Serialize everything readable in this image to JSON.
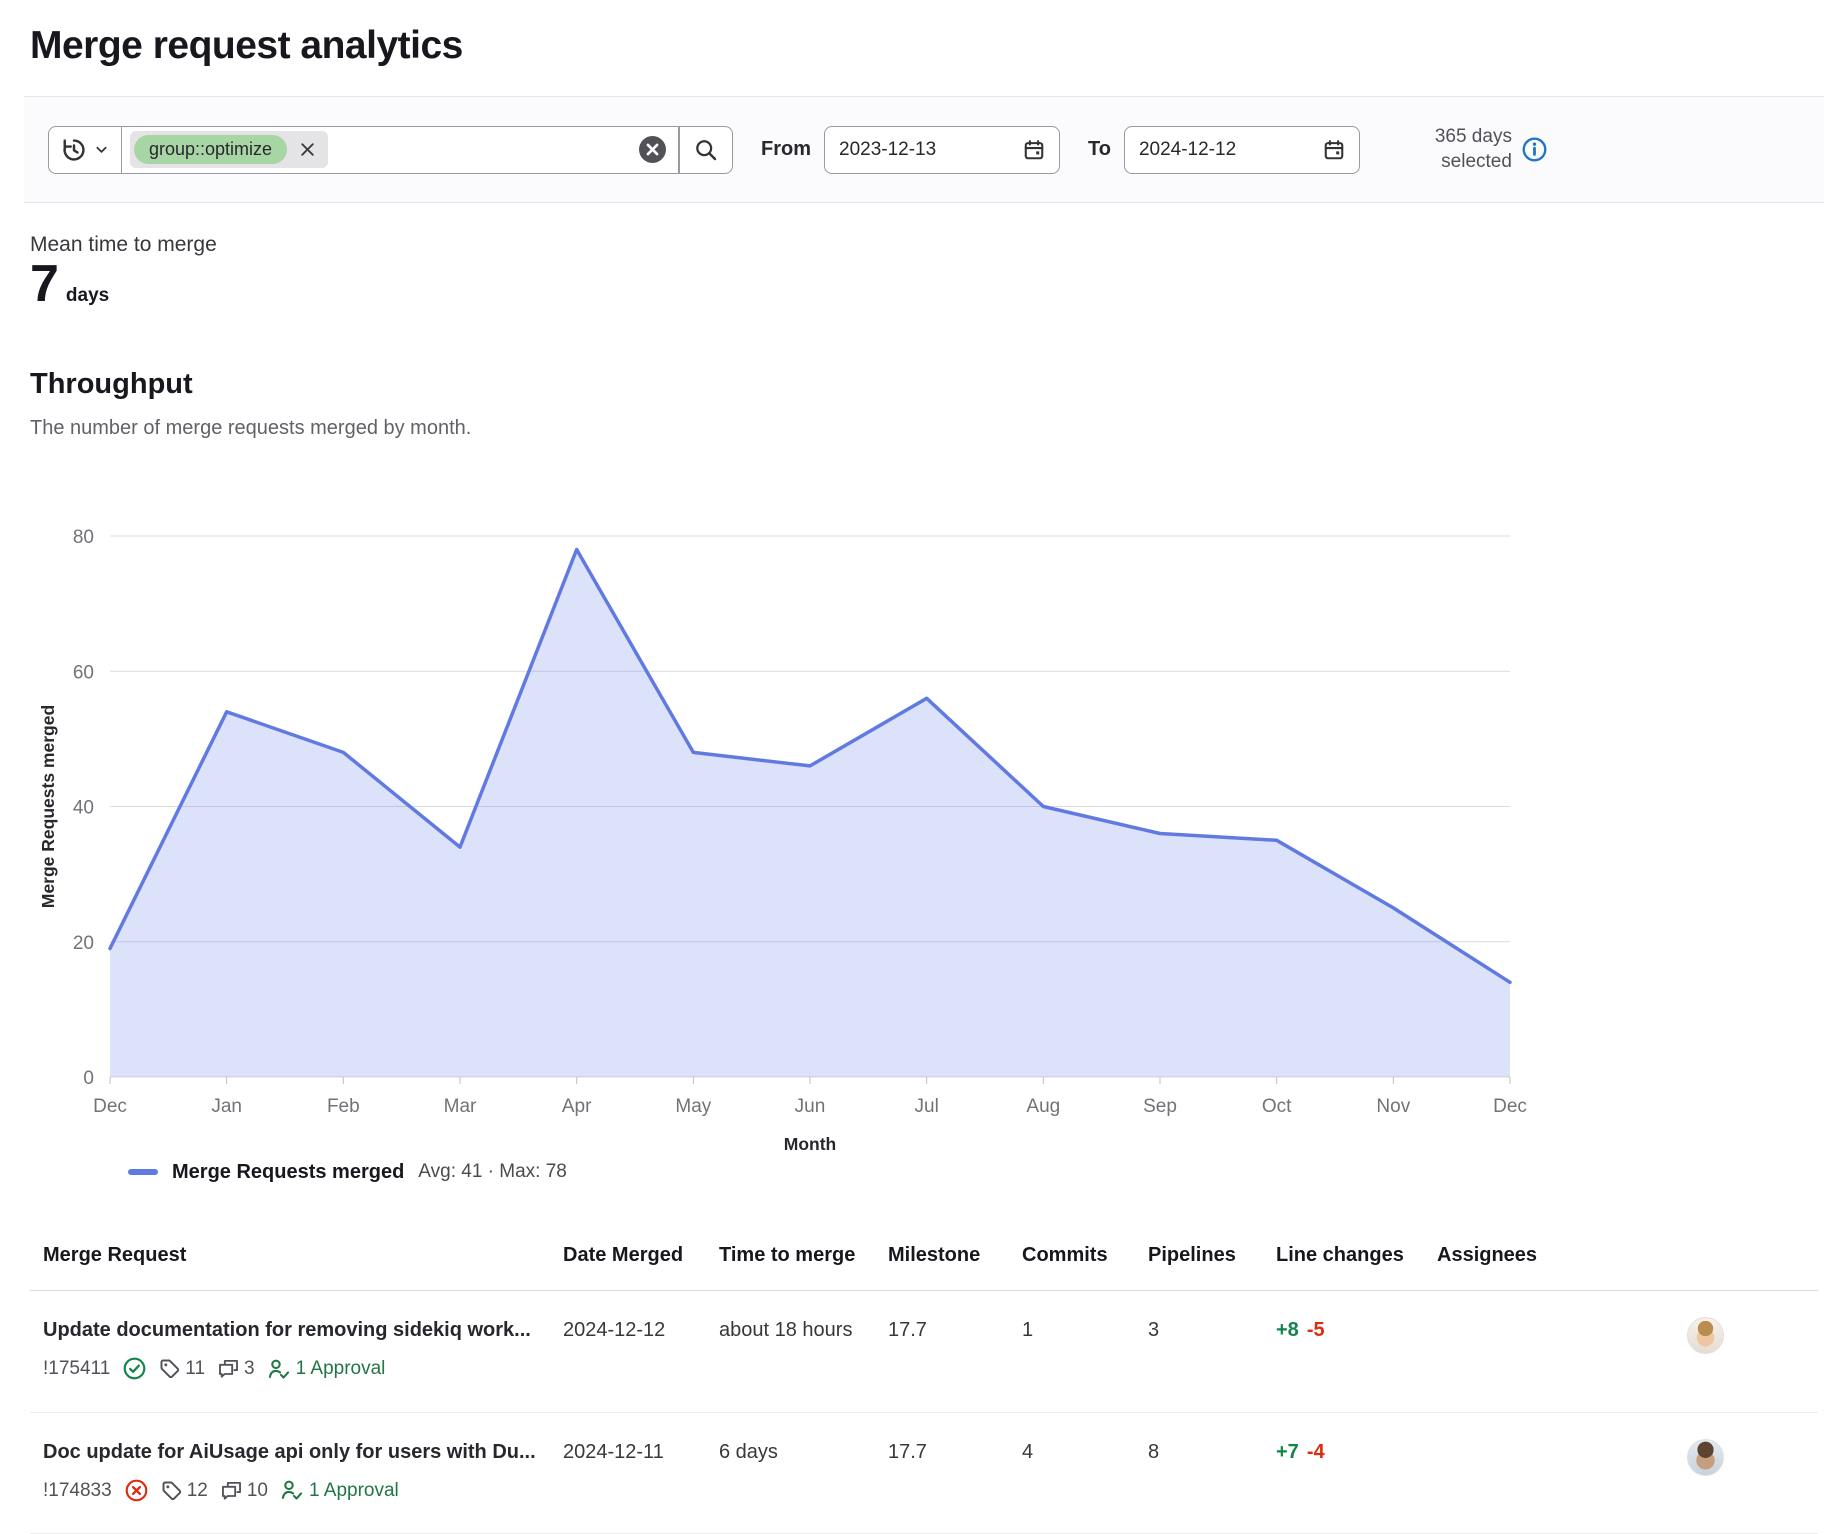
{
  "page_title": "Merge request analytics",
  "filter_bar": {
    "token": {
      "label": "group::optimize"
    },
    "from": {
      "label": "From",
      "value": "2023-12-13"
    },
    "to": {
      "label": "To",
      "value": "2024-12-12"
    },
    "range_summary": "365 days selected"
  },
  "metric": {
    "label": "Mean time to merge",
    "value": "7",
    "unit": "days"
  },
  "section": {
    "title": "Throughput",
    "description": "The number of merge requests merged by month."
  },
  "chart_data": {
    "type": "area",
    "title": "Throughput",
    "x": [
      "Dec",
      "Jan",
      "Feb",
      "Mar",
      "Apr",
      "May",
      "Jun",
      "Jul",
      "Aug",
      "Sep",
      "Oct",
      "Nov",
      "Dec"
    ],
    "series": [
      {
        "name": "Merge Requests merged",
        "values": [
          19,
          54,
          48,
          34,
          78,
          48,
          46,
          56,
          40,
          36,
          35,
          25,
          14
        ]
      }
    ],
    "xlabel": "Month",
    "ylabel": "Merge Requests merged",
    "ylim": [
      0,
      80
    ],
    "yticks": [
      0,
      20,
      40,
      60,
      80
    ],
    "grid": true,
    "legend_position": "bottom-left",
    "legend_stats": "Avg: 41 · Max: 78",
    "line_color": "#617ae2",
    "fill_color": "rgba(97,122,226,0.22)"
  },
  "table": {
    "headers": [
      "Merge Request",
      "Date Merged",
      "Time to merge",
      "Milestone",
      "Commits",
      "Pipelines",
      "Line changes",
      "Assignees"
    ],
    "rows": [
      {
        "title": "Update documentation for removing sidekiq work...",
        "id": "!175411",
        "pipeline_status": "passed",
        "labels": "11",
        "comments": "3",
        "approvals": "1 Approval",
        "date_merged": "2024-12-12",
        "time_to_merge": "about 18 hours",
        "milestone": "17.7",
        "commits": "1",
        "pipelines": "3",
        "additions": "+8",
        "deletions": "-5"
      },
      {
        "title": "Doc update for AiUsage api only for users with Du...",
        "id": "!174833",
        "pipeline_status": "failed",
        "labels": "12",
        "comments": "10",
        "approvals": "1 Approval",
        "date_merged": "2024-12-11",
        "time_to_merge": "6 days",
        "milestone": "17.7",
        "commits": "4",
        "pipelines": "8",
        "additions": "+7",
        "deletions": "-4"
      }
    ]
  },
  "colors": {
    "success_green": "#108548",
    "danger_red": "#dd2b0e",
    "info_blue": "#1f75cb",
    "token_green_bg": "#a8d5a4"
  }
}
